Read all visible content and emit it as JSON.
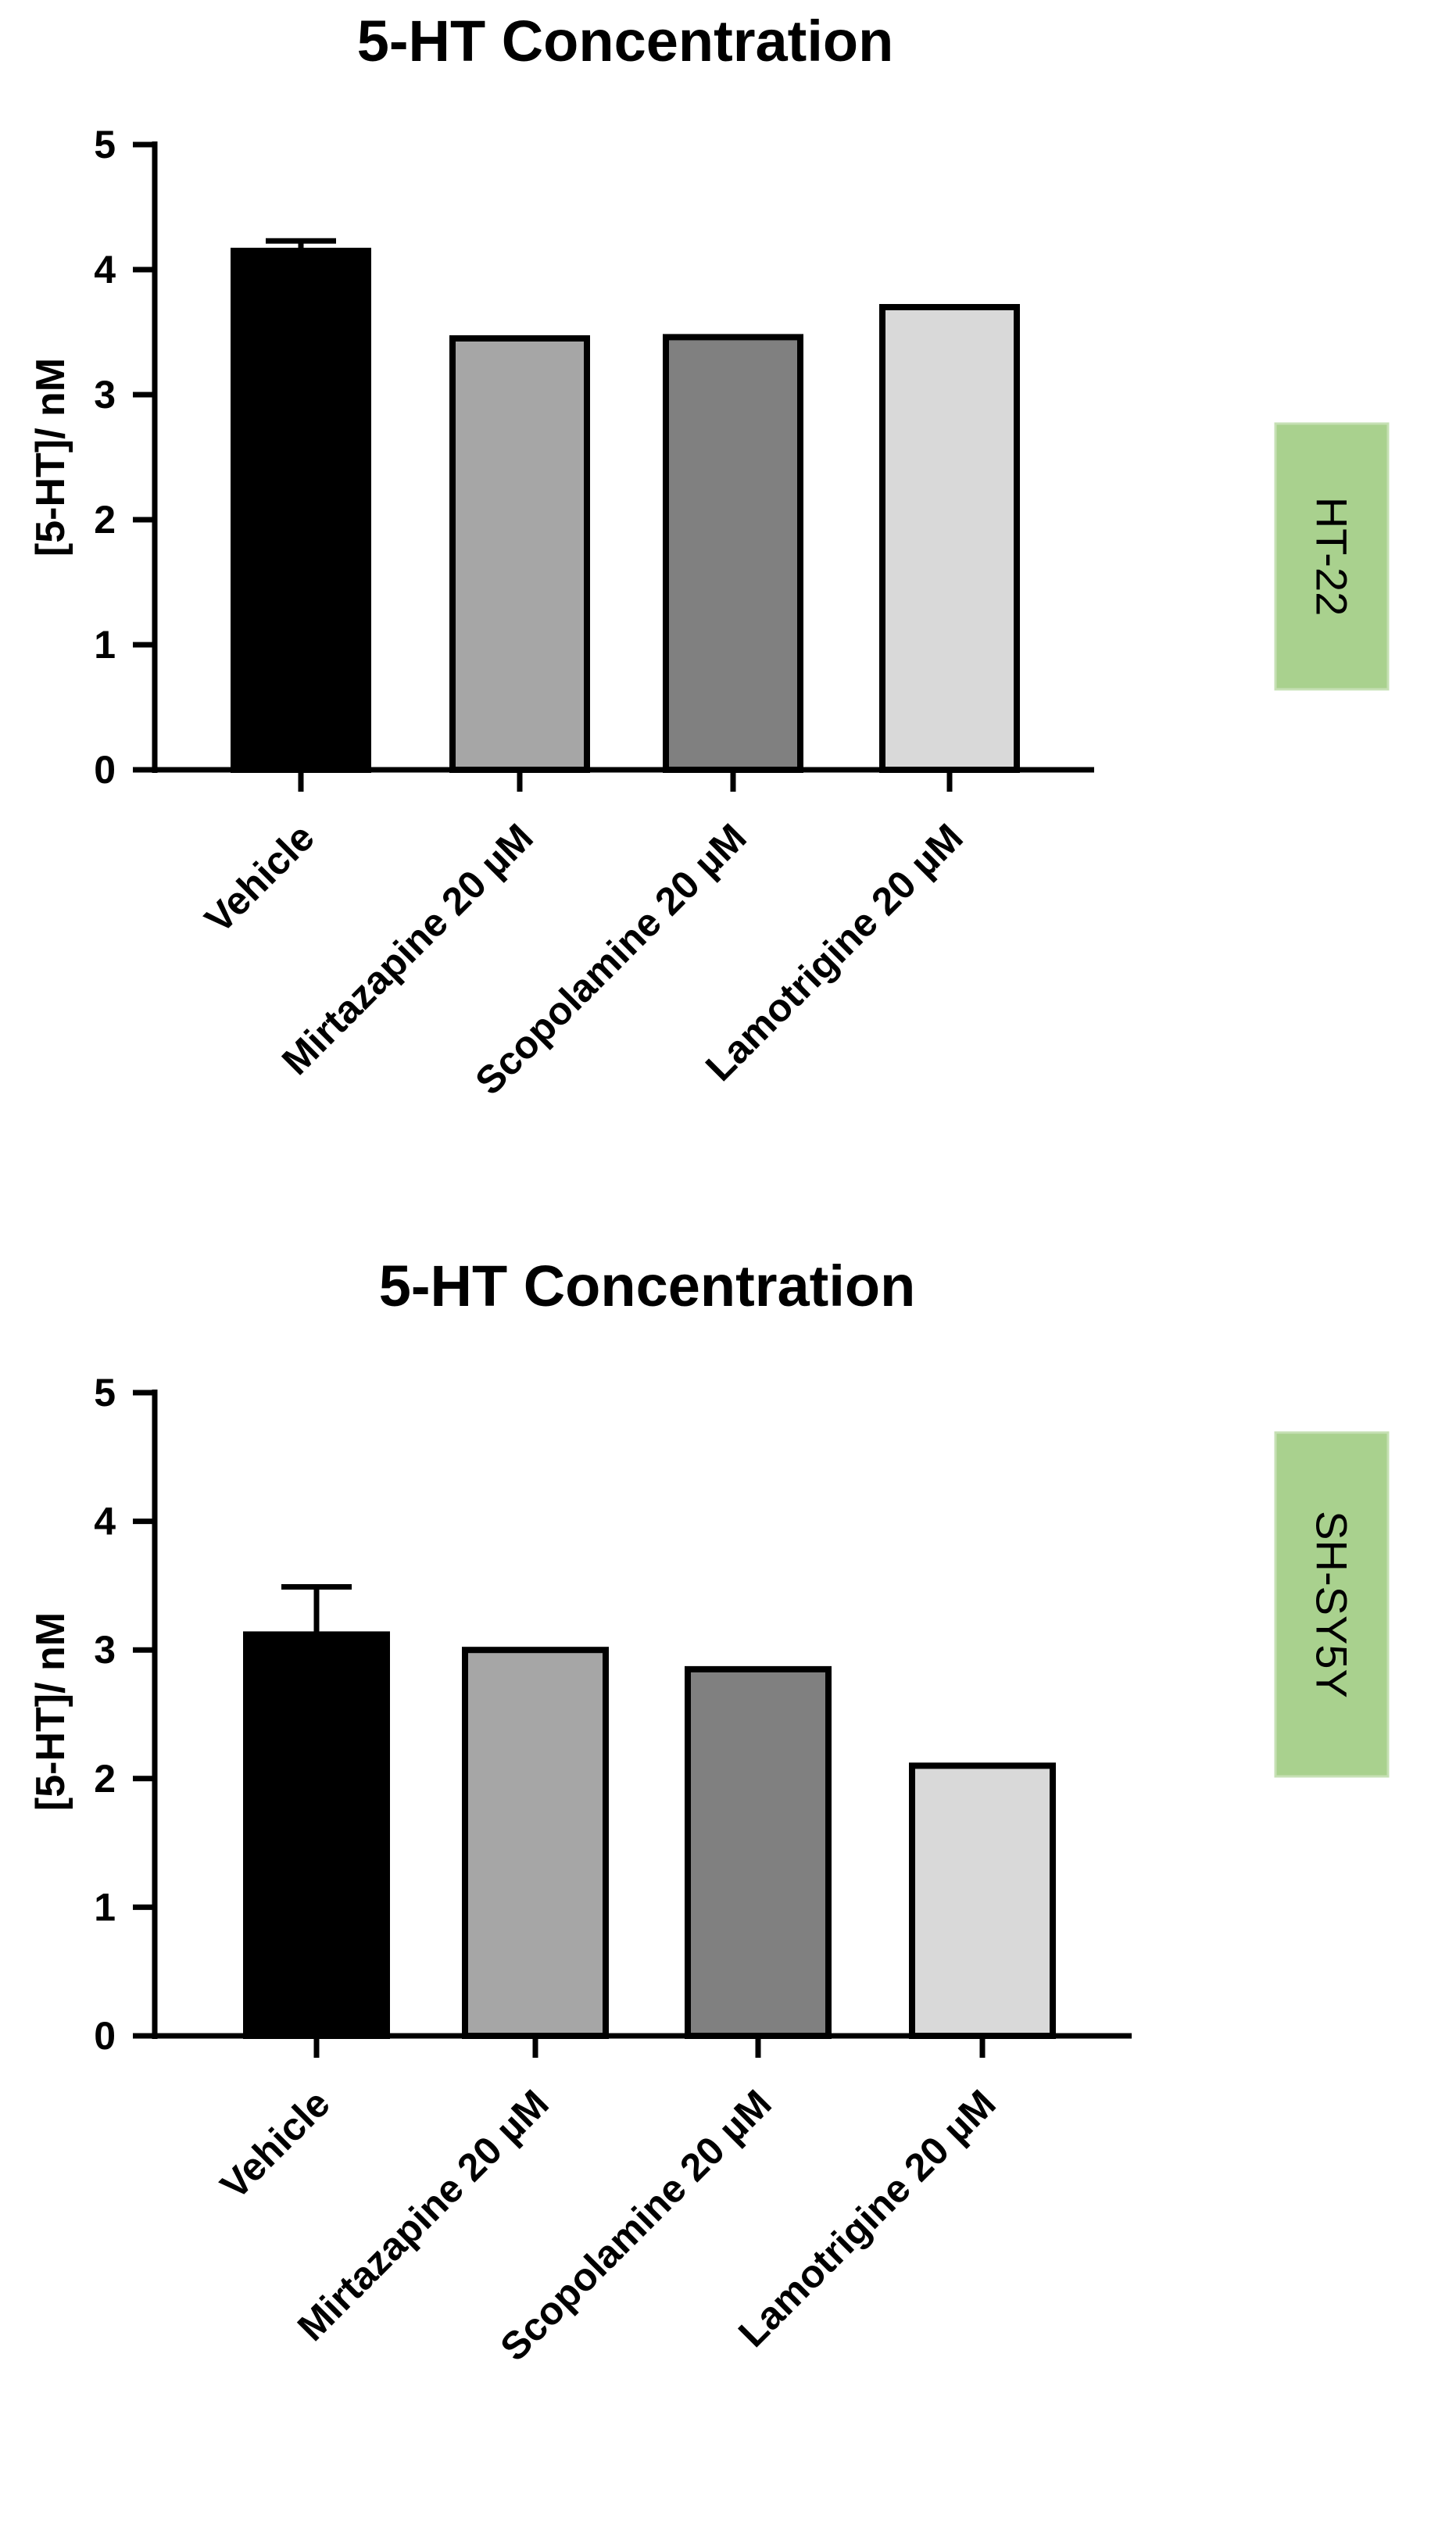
{
  "chart_data": [
    {
      "type": "bar",
      "title": "5-HT Concentration",
      "ylabel": "[5-HT]/ nM",
      "xlabel": "",
      "ylim": [
        0,
        5
      ],
      "yticks": [
        0,
        1,
        2,
        3,
        4,
        5
      ],
      "ytick_labels": [
        "0",
        "1",
        "2",
        "3",
        "4",
        "5"
      ],
      "categories": [
        "Vehicle",
        "Mirtazapine 20 µM",
        "Scopolamine 20 µM",
        "Lamotrigine 20 µM"
      ],
      "values": [
        4.15,
        3.45,
        3.46,
        3.7
      ],
      "error": [
        0.08,
        0,
        0,
        0
      ],
      "bar_colors": [
        "#000000",
        "#a6a6a6",
        "#808080",
        "#d9d9d9"
      ],
      "side_label": "HT-22",
      "grid": false
    },
    {
      "type": "bar",
      "title": "5-HT Concentration",
      "ylabel": "[5-HT]/ nM",
      "xlabel": "",
      "ylim": [
        0,
        5
      ],
      "yticks": [
        0,
        1,
        2,
        3,
        4,
        5
      ],
      "ytick_labels": [
        "0",
        "1",
        "2",
        "3",
        "4",
        "5"
      ],
      "categories": [
        "Vehicle",
        "Mirtazapine 20 µM",
        "Scopolamine 20 µM",
        "Lamotrigine 20 µM"
      ],
      "values": [
        3.12,
        3.0,
        2.85,
        2.1
      ],
      "error": [
        0.37,
        0,
        0,
        0
      ],
      "bar_colors": [
        "#000000",
        "#a6a6a6",
        "#808080",
        "#d9d9d9"
      ],
      "side_label": "SH-SY5Y",
      "grid": false
    }
  ],
  "side_label_color": "#a9d18e"
}
